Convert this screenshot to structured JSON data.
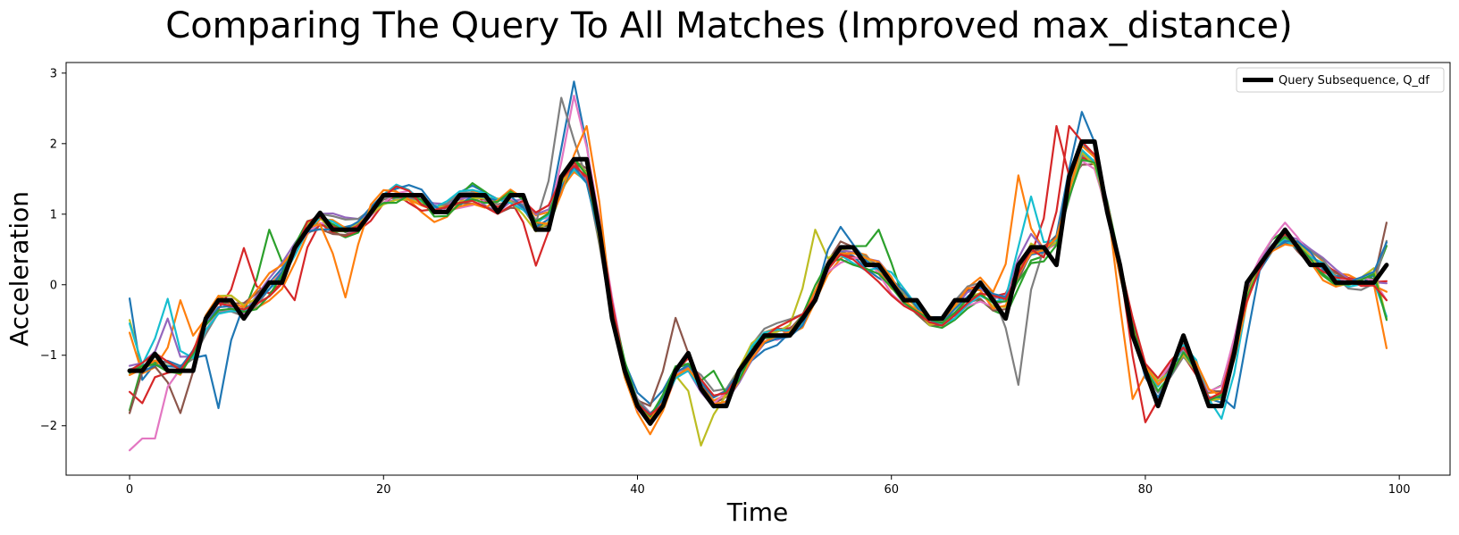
{
  "chart_data": {
    "type": "line",
    "title": "Comparing The Query To All Matches (Improved max_distance)",
    "xlabel": "Time",
    "ylabel": "Acceleration",
    "xlim": [
      -5,
      104
    ],
    "ylim": [
      -2.7,
      3.15
    ],
    "xticks": [
      0,
      20,
      40,
      60,
      80,
      100
    ],
    "yticks": [
      -2,
      -1,
      0,
      1,
      2,
      3
    ],
    "ytick_labels": [
      "−2",
      "−1",
      "0",
      "1",
      "2",
      "3"
    ],
    "grid": false,
    "legend": {
      "position": "top-right",
      "entries": [
        "Query Subsequence, Q_df"
      ]
    },
    "query": {
      "name": "Query Subsequence, Q_df",
      "color": "#000000",
      "anchors": [
        [
          0,
          -1.22
        ],
        [
          1,
          -1.22
        ],
        [
          2,
          -0.98
        ],
        [
          3,
          -1.22
        ],
        [
          4,
          -1.22
        ],
        [
          5,
          -1.22
        ],
        [
          6,
          -0.48
        ],
        [
          7,
          -0.22
        ],
        [
          8,
          -0.22
        ],
        [
          9,
          -0.48
        ],
        [
          10,
          -0.22
        ],
        [
          11,
          0.03
        ],
        [
          12,
          0.03
        ],
        [
          13,
          0.52
        ],
        [
          14,
          0.78
        ],
        [
          15,
          1.02
        ],
        [
          16,
          0.78
        ],
        [
          17,
          0.78
        ],
        [
          18,
          0.78
        ],
        [
          19,
          1.02
        ],
        [
          20,
          1.27
        ],
        [
          21,
          1.27
        ],
        [
          22,
          1.27
        ],
        [
          23,
          1.27
        ],
        [
          24,
          1.03
        ],
        [
          25,
          1.03
        ],
        [
          26,
          1.27
        ],
        [
          27,
          1.27
        ],
        [
          28,
          1.27
        ],
        [
          29,
          1.03
        ],
        [
          30,
          1.27
        ],
        [
          31,
          1.27
        ],
        [
          32,
          0.78
        ],
        [
          33,
          0.78
        ],
        [
          34,
          1.53
        ],
        [
          35,
          1.78
        ],
        [
          36,
          1.78
        ],
        [
          37,
          0.78
        ],
        [
          38,
          -0.48
        ],
        [
          39,
          -1.22
        ],
        [
          40,
          -1.72
        ],
        [
          41,
          -1.97
        ],
        [
          42,
          -1.72
        ],
        [
          43,
          -1.22
        ],
        [
          44,
          -0.97
        ],
        [
          45,
          -1.47
        ],
        [
          46,
          -1.72
        ],
        [
          47,
          -1.72
        ],
        [
          48,
          -1.22
        ],
        [
          49,
          -0.97
        ],
        [
          50,
          -0.72
        ],
        [
          51,
          -0.72
        ],
        [
          52,
          -0.72
        ],
        [
          53,
          -0.48
        ],
        [
          54,
          -0.22
        ],
        [
          55,
          0.28
        ],
        [
          56,
          0.53
        ],
        [
          57,
          0.53
        ],
        [
          58,
          0.28
        ],
        [
          59,
          0.28
        ],
        [
          60,
          0.03
        ],
        [
          61,
          -0.22
        ],
        [
          62,
          -0.22
        ],
        [
          63,
          -0.48
        ],
        [
          64,
          -0.48
        ],
        [
          65,
          -0.22
        ],
        [
          66,
          -0.22
        ],
        [
          67,
          0.03
        ],
        [
          68,
          -0.22
        ],
        [
          69,
          -0.48
        ],
        [
          70,
          0.28
        ],
        [
          71,
          0.53
        ],
        [
          72,
          0.53
        ],
        [
          73,
          0.28
        ],
        [
          74,
          1.53
        ],
        [
          75,
          2.03
        ],
        [
          76,
          2.03
        ],
        [
          77,
          1.03
        ],
        [
          78,
          0.28
        ],
        [
          79,
          -0.72
        ],
        [
          80,
          -1.22
        ],
        [
          81,
          -1.72
        ],
        [
          82,
          -1.22
        ],
        [
          83,
          -0.72
        ],
        [
          84,
          -1.22
        ],
        [
          85,
          -1.72
        ],
        [
          86,
          -1.72
        ],
        [
          87,
          -0.97
        ],
        [
          88,
          0.03
        ],
        [
          89,
          0.28
        ],
        [
          90,
          0.53
        ],
        [
          91,
          0.78
        ],
        [
          92,
          0.53
        ],
        [
          93,
          0.28
        ],
        [
          94,
          0.28
        ],
        [
          95,
          0.03
        ],
        [
          96,
          0.03
        ],
        [
          97,
          0.03
        ],
        [
          98,
          0.03
        ],
        [
          99,
          0.28
        ]
      ]
    },
    "matches": [
      {
        "color": "#1f77b4",
        "start": [
          0,
          0.3
        ],
        "end": -0.48,
        "noise": 0.16,
        "seed": 1,
        "events": [
          [
            1,
            -1.35
          ],
          [
            7,
            -1.75
          ],
          [
            35,
            2.88
          ],
          [
            75,
            2.45
          ]
        ]
      },
      {
        "color": "#ff7f0e",
        "start": [
          0,
          -0.68
        ],
        "end": -0.9,
        "noise": 0.18,
        "seed": 2,
        "events": [
          [
            4,
            -0.22
          ],
          [
            41,
            -2.12
          ],
          [
            70,
            1.55
          ],
          [
            79,
            -1.62
          ]
        ]
      },
      {
        "color": "#2ca02c",
        "start": [
          0,
          -1.78
        ],
        "end": 0.55,
        "noise": 0.16,
        "seed": 3,
        "events": [
          [
            11,
            0.78
          ],
          [
            59,
            0.78
          ]
        ]
      },
      {
        "color": "#d62728",
        "start": [
          0,
          -1.45
        ],
        "end": 0.05,
        "noise": 0.16,
        "seed": 4,
        "events": [
          [
            1,
            -1.68
          ],
          [
            9,
            0.52
          ],
          [
            13,
            -0.22
          ],
          [
            32,
            0.27
          ],
          [
            73,
            2.25
          ],
          [
            80,
            -1.95
          ]
        ]
      },
      {
        "color": "#9467bd",
        "start": [
          0,
          -1.15
        ],
        "end": 0.02,
        "noise": 0.16,
        "seed": 5,
        "events": [
          [
            3,
            -0.48
          ],
          [
            71,
            0.72
          ]
        ]
      },
      {
        "color": "#8c564b",
        "start": [
          0,
          -1.82
        ],
        "end": 0.88,
        "noise": 0.16,
        "seed": 6,
        "events": [
          [
            4,
            -1.82
          ],
          [
            43,
            -0.47
          ],
          [
            75,
            1.7
          ]
        ]
      },
      {
        "color": "#e377c2",
        "start": [
          0,
          -2.42
        ],
        "end": -0.22,
        "noise": 0.16,
        "seed": 7,
        "events": [
          [
            1,
            -2.18
          ],
          [
            2,
            -2.18
          ],
          [
            35,
            2.68
          ],
          [
            91,
            0.88
          ]
        ]
      },
      {
        "color": "#7f7f7f",
        "start": [
          0,
          -1.2
        ],
        "end": 0.62,
        "noise": 0.16,
        "seed": 8,
        "events": [
          [
            34,
            2.65
          ],
          [
            70,
            -1.42
          ]
        ]
      },
      {
        "color": "#bcbd22",
        "start": [
          0,
          -0.5
        ],
        "end": -0.48,
        "noise": 0.16,
        "seed": 9,
        "events": [
          [
            45,
            -2.28
          ],
          [
            54,
            0.78
          ]
        ]
      },
      {
        "color": "#17becf",
        "start": [
          0,
          -0.55
        ],
        "end": -0.45,
        "noise": 0.16,
        "seed": 10,
        "events": [
          [
            3,
            -0.2
          ],
          [
            86,
            -1.9
          ],
          [
            71,
            1.25
          ]
        ]
      },
      {
        "color": "#1f77b4",
        "start": [
          0,
          -1.2
        ],
        "end": 0.6,
        "noise": 0.18,
        "seed": 11,
        "events": [
          [
            87,
            -1.75
          ],
          [
            56,
            0.82
          ]
        ]
      },
      {
        "color": "#ff7f0e",
        "start": [
          0,
          -1.28
        ],
        "end": -0.1,
        "noise": 0.18,
        "seed": 12,
        "events": [
          [
            17,
            -0.18
          ],
          [
            36,
            2.25
          ]
        ]
      },
      {
        "color": "#2ca02c",
        "start": [
          0,
          -1.25
        ],
        "end": -0.5,
        "noise": 0.18,
        "seed": 13,
        "events": [
          [
            46,
            -1.22
          ]
        ]
      },
      {
        "color": "#d62728",
        "start": [
          0,
          -1.22
        ],
        "end": -0.22,
        "noise": 0.18,
        "seed": 14,
        "events": [
          [
            74,
            2.25
          ]
        ]
      }
    ]
  }
}
